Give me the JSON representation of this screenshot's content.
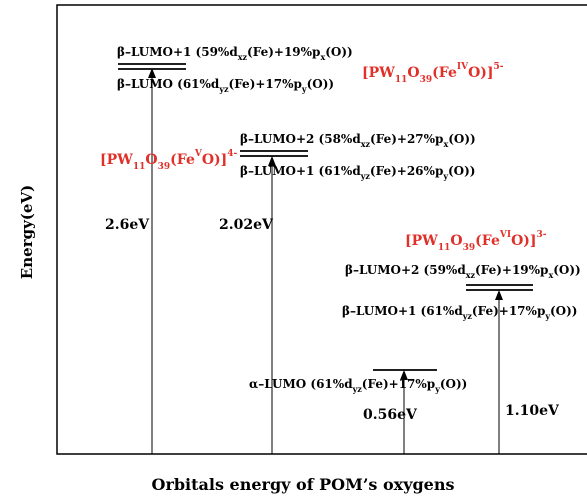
{
  "axes": {
    "y_label": "Energy(eV)",
    "x_label": "Orbitals energy of POM’s oxygens"
  },
  "complexes": [
    {
      "prefix": "[PW",
      "sub1": "11",
      "mid": "O",
      "sub2": "39",
      "fe": "(Fe",
      "ox": "IV",
      "tail": "O)]",
      "charge": "5-"
    },
    {
      "prefix": "[PW",
      "sub1": "11",
      "mid": "O",
      "sub2": "39",
      "fe": "(Fe",
      "ox": "V",
      "tail": "O)]",
      "charge": "4-"
    },
    {
      "prefix": "[PW",
      "sub1": "11",
      "mid": "O",
      "sub2": "39",
      "fe": "(Fe",
      "ox": "VI",
      "tail": "O)]",
      "charge": "3-"
    }
  ],
  "orbitals": {
    "fe4_upper": {
      "name": "β–LUMO+1",
      "c1": "59%",
      "d": "d",
      "dsub": "xz",
      "fe": "(Fe)+19%",
      "p": "p",
      "psub": "x",
      "tail": "(O)"
    },
    "fe4_lower": {
      "name": "β–LUMO",
      "c1": "61%",
      "d": "d",
      "dsub": "yz",
      "fe": "(Fe)+17%",
      "p": "p",
      "psub": "y",
      "tail": "(O)"
    },
    "fe5_upper": {
      "name": "β–LUMO+2",
      "c1": "58%",
      "d": "d",
      "dsub": "xz",
      "fe": "(Fe)+27%",
      "p": "p",
      "psub": "x",
      "tail": "(O)"
    },
    "fe5_lower": {
      "name": "β–LUMO+1",
      "c1": "61%",
      "d": "d",
      "dsub": "yz",
      "fe": "(Fe)+26%",
      "p": "p",
      "psub": "y",
      "tail": "(O)"
    },
    "fe6_upper": {
      "name": "β–LUMO+2",
      "c1": "59%",
      "d": "d",
      "dsub": "xz",
      "fe": "(Fe)+19%",
      "p": "p",
      "psub": "x",
      "tail": "(O)"
    },
    "fe6_lower": {
      "name": "β–LUMO+1",
      "c1": "61%",
      "d": "d",
      "dsub": "yz",
      "fe": "(Fe)+17%",
      "p": "p",
      "psub": "y",
      "tail": "(O)"
    },
    "fe6_alpha": {
      "name": "α–LUMO",
      "c1": "61%",
      "d": "d",
      "dsub": "yz",
      "fe": "(Fe)+17%",
      "p": "p",
      "psub": "y",
      "tail": "(O)"
    }
  },
  "gaps": [
    "2.6eV",
    "2.02eV",
    "0.56eV",
    "1.10eV"
  ]
}
